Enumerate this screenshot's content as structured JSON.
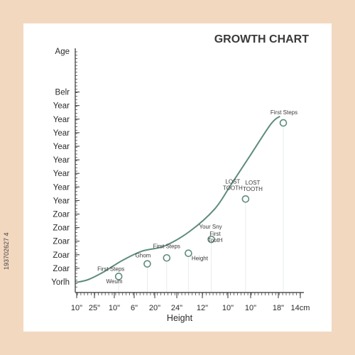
{
  "stock_id": "193702627 4",
  "colors": {
    "background": "#f3d8c0",
    "card": "#ffffff",
    "curve": "#5e8c7f",
    "marker_fill": "#ffffff",
    "axis": "#333333",
    "dropline": "#e7ede9"
  },
  "chart_data": {
    "type": "line",
    "title": "GROWTH CHART",
    "xlabel": "Height",
    "ylabel": "Age",
    "grid": false,
    "legend": "none",
    "y_tick_labels": [
      "Yorlh",
      "Zoar",
      "Zoar",
      "Zoar",
      "Zoar",
      "Zoar",
      "Year",
      "Year",
      "Year",
      "Year",
      "Year",
      "Year",
      "Year",
      "Year",
      "Belr"
    ],
    "x_tick_labels": [
      "10\"",
      "25\"",
      "10\"",
      "6\"",
      "20\"",
      "24\"",
      "12\"",
      "10\"",
      "10\"",
      "18\"",
      "14cm"
    ],
    "x_range": [
      0,
      10
    ],
    "y_range": [
      0,
      14
    ],
    "curve": [
      {
        "x": 0.05,
        "y": 0.55
      },
      {
        "x": 0.55,
        "y": 0.75
      },
      {
        "x": 1.2,
        "y": 1.3
      },
      {
        "x": 2.05,
        "y": 2.2
      },
      {
        "x": 2.9,
        "y": 2.9
      },
      {
        "x": 3.9,
        "y": 3.3
      },
      {
        "x": 5.0,
        "y": 4.4
      },
      {
        "x": 6.1,
        "y": 6.1
      },
      {
        "x": 6.8,
        "y": 7.9
      },
      {
        "x": 7.6,
        "y": 10.0
      },
      {
        "x": 8.55,
        "y": 12.5
      },
      {
        "x": 8.95,
        "y": 13.1
      }
    ],
    "points": [
      {
        "x": 1.9,
        "y": 1.0,
        "label": "First Steps"
      },
      {
        "x": 3.15,
        "y": 1.95,
        "label": "Ghom"
      },
      {
        "x": 4.0,
        "y": 2.4,
        "label": "First Steps"
      },
      {
        "x": 4.95,
        "y": 2.75,
        "label": "Height"
      },
      {
        "x": 5.95,
        "y": 3.8,
        "label": "Your Sny"
      },
      {
        "x": 7.45,
        "y": 6.85,
        "label": "LOST TOOTH"
      },
      {
        "x": 9.1,
        "y": 12.6,
        "label": "First Steps"
      }
    ],
    "annotations": [
      {
        "text": "Weum"
      },
      {
        "text": "First"
      },
      {
        "text": "TootH"
      },
      {
        "text": "LOST"
      },
      {
        "text": "TOOTH"
      },
      {
        "text": "LOST"
      },
      {
        "text": "TOOTH"
      }
    ]
  }
}
